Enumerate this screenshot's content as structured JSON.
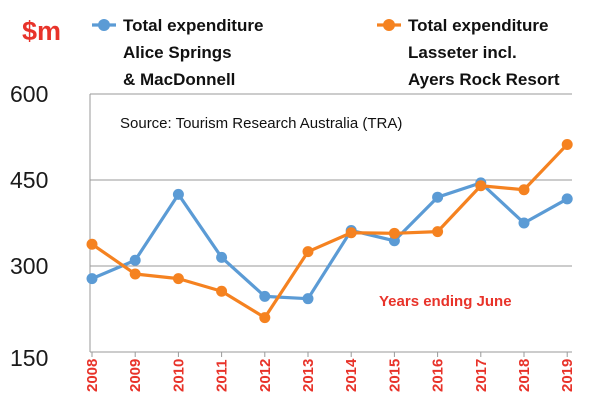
{
  "chart_data": {
    "type": "line",
    "unit_label": "$m",
    "x": [
      "2008",
      "2009",
      "2010",
      "2011",
      "2012",
      "2013",
      "2014",
      "2015",
      "2016",
      "2017",
      "2018",
      "2019"
    ],
    "series": [
      {
        "name_lines": [
          "Total expenditure",
          "Alice Springs",
          "& MacDonnell"
        ],
        "color": "#5B9BD5",
        "values": [
          278,
          310,
          425,
          315,
          247,
          243,
          362,
          344,
          420,
          445,
          375,
          417
        ]
      },
      {
        "name_lines": [
          "Total expenditure",
          "Lasseter incl.",
          "Ayers Rock Resort"
        ],
        "color": "#F58220",
        "values": [
          338,
          286,
          278,
          256,
          210,
          325,
          358,
          357,
          360,
          440,
          433,
          512
        ]
      }
    ],
    "ylim": [
      150,
      600
    ],
    "yticks": [
      "600",
      "450",
      "300",
      "150"
    ],
    "grid": true,
    "source_note": "Source: Tourism Research Australia (TRA)",
    "period_note": "Years ending June",
    "accent_color": "#E8332A"
  }
}
